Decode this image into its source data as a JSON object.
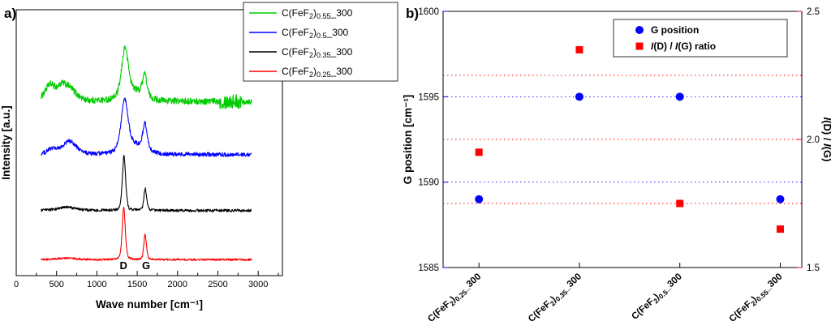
{
  "chart_data": [
    {
      "panel": "a",
      "tag": "a)",
      "type": "line",
      "xlabel": "Wave number [cm⁻¹]",
      "ylabel": "Intensity [a.u.]",
      "xlim": [
        0,
        3300
      ],
      "x_ticks": [
        0,
        500,
        1000,
        1500,
        2000,
        2500,
        3000
      ],
      "x_minor_step": 250,
      "x_data_range": [
        310,
        2920
      ],
      "peak_annotations": [
        {
          "text": "D",
          "x": 1330
        },
        {
          "text": "G",
          "x": 1610
        }
      ],
      "legend_position": "top-right",
      "series": [
        {
          "name": "C(FeF2)0.55_300",
          "name_parts": [
            {
              "t": "C(FeF"
            },
            {
              "t": "2",
              "sub": true
            },
            {
              "t": ")"
            },
            {
              "t": "0.55",
              "sub": true
            },
            {
              "t": "_300"
            }
          ],
          "color": "#00cc00",
          "baseline_offset": 0.655,
          "peaks": [
            {
              "label": "D",
              "center": 1348,
              "height": 0.175,
              "width": 42
            },
            {
              "label": "G",
              "center": 1592,
              "height": 0.085,
              "width": 28
            },
            {
              "center": 420,
              "height": 0.06,
              "width": 70
            },
            {
              "center": 560,
              "height": 0.03,
              "width": 50
            },
            {
              "center": 650,
              "height": 0.05,
              "width": 90
            },
            {
              "center": 1450,
              "height": 0.04,
              "width": 140
            }
          ],
          "noise": 0.012,
          "noise_bursts": [
            {
              "from": 2520,
              "to": 2790,
              "amp": 0.016
            }
          ]
        },
        {
          "name": "C(FeF2)0.5_300",
          "name_parts": [
            {
              "t": "C(FeF"
            },
            {
              "t": "2",
              "sub": true
            },
            {
              "t": ")"
            },
            {
              "t": "0.5",
              "sub": true
            },
            {
              "t": "_300"
            }
          ],
          "color": "#0000ff",
          "baseline_offset": 0.455,
          "peaks": [
            {
              "label": "D",
              "center": 1343,
              "height": 0.185,
              "width": 45
            },
            {
              "label": "G",
              "center": 1597,
              "height": 0.098,
              "width": 30
            },
            {
              "center": 440,
              "height": 0.02,
              "width": 60
            },
            {
              "center": 660,
              "height": 0.05,
              "width": 90
            },
            {
              "center": 1455,
              "height": 0.035,
              "width": 130
            }
          ],
          "noise": 0.008,
          "noise_bursts": []
        },
        {
          "name": "C(FeF2)0.35_300",
          "name_parts": [
            {
              "t": "C(FeF"
            },
            {
              "t": "2",
              "sub": true
            },
            {
              "t": ")"
            },
            {
              "t": "0.35",
              "sub": true
            },
            {
              "t": "_300"
            }
          ],
          "color": "#000000",
          "baseline_offset": 0.245,
          "peaks": [
            {
              "label": "D",
              "center": 1336,
              "height": 0.205,
              "width": 21
            },
            {
              "label": "G",
              "center": 1600,
              "height": 0.082,
              "width": 18
            },
            {
              "center": 630,
              "height": 0.012,
              "width": 120
            }
          ],
          "noise": 0.005,
          "noise_bursts": []
        },
        {
          "name": "C(FeF2)0.25_300",
          "name_parts": [
            {
              "t": "C(FeF"
            },
            {
              "t": "2",
              "sub": true
            },
            {
              "t": ")"
            },
            {
              "t": "0.25",
              "sub": true
            },
            {
              "t": "_300"
            }
          ],
          "color": "#ff0000",
          "baseline_offset": 0.06,
          "peaks": [
            {
              "label": "D",
              "center": 1333,
              "height": 0.195,
              "width": 20
            },
            {
              "label": "G",
              "center": 1598,
              "height": 0.095,
              "width": 17
            },
            {
              "center": 620,
              "height": 0.006,
              "width": 120
            }
          ],
          "noise": 0.0035,
          "noise_bursts": []
        }
      ]
    },
    {
      "panel": "b",
      "tag": "b)",
      "type": "scatter",
      "ylabel_left": "G position [cm⁻¹]",
      "ylabel_right": "I(D) / I(G)",
      "ylabel_right_parts": [
        {
          "t": "I",
          "i": true
        },
        {
          "t": "(D) / "
        },
        {
          "t": "I",
          "i": true
        },
        {
          "t": "(G)"
        }
      ],
      "ylim_left": [
        1585,
        1600
      ],
      "yticks_left": [
        "1585",
        "1590",
        "1595",
        "1600"
      ],
      "ylim_right": [
        1.5,
        2.5
      ],
      "yticks_right": [
        "1.5",
        "2.0",
        "2.5"
      ],
      "gridlines_left": [
        1590,
        1595
      ],
      "gridlines_right": [
        1.75,
        2.0,
        2.25
      ],
      "axis_color_left": "#0000ff",
      "axis_color_right": "#ff0000",
      "categories": [
        "C(FeF2)0.25_300",
        "C(FeF2)0.35_300",
        "C(FeF2)0.5_300",
        "C(FeF2)0.55_300"
      ],
      "categories_parts": [
        [
          {
            "t": "C(FeF"
          },
          {
            "t": "2",
            "sub": true
          },
          {
            "t": ")"
          },
          {
            "t": "0.25",
            "sub": true
          },
          {
            "t": "_300"
          }
        ],
        [
          {
            "t": "C(FeF"
          },
          {
            "t": "2",
            "sub": true
          },
          {
            "t": ")"
          },
          {
            "t": "0.35",
            "sub": true
          },
          {
            "t": "_300"
          }
        ],
        [
          {
            "t": "C(FeF"
          },
          {
            "t": "2",
            "sub": true
          },
          {
            "t": ")"
          },
          {
            "t": "0.5",
            "sub": true
          },
          {
            "t": "_300"
          }
        ],
        [
          {
            "t": "C(FeF"
          },
          {
            "t": "2",
            "sub": true
          },
          {
            "t": ")"
          },
          {
            "t": "0.55",
            "sub": true
          },
          {
            "t": "_300"
          }
        ]
      ],
      "series": [
        {
          "name": "G position",
          "name_parts": [
            {
              "t": "G position"
            }
          ],
          "marker": "circle",
          "color": "#0000ff",
          "axis": "left",
          "values": [
            1589,
            1595,
            1595,
            1589
          ]
        },
        {
          "name": "I(D) / I(G) ratio",
          "name_parts": [
            {
              "t": "I",
              "i": true
            },
            {
              "t": "(D) / "
            },
            {
              "t": "I",
              "i": true
            },
            {
              "t": "(G) ratio"
            }
          ],
          "marker": "square",
          "color": "#ff0000",
          "axis": "right",
          "values": [
            1.95,
            2.35,
            1.75,
            1.65
          ]
        }
      ],
      "legend_position": "top-right"
    }
  ]
}
